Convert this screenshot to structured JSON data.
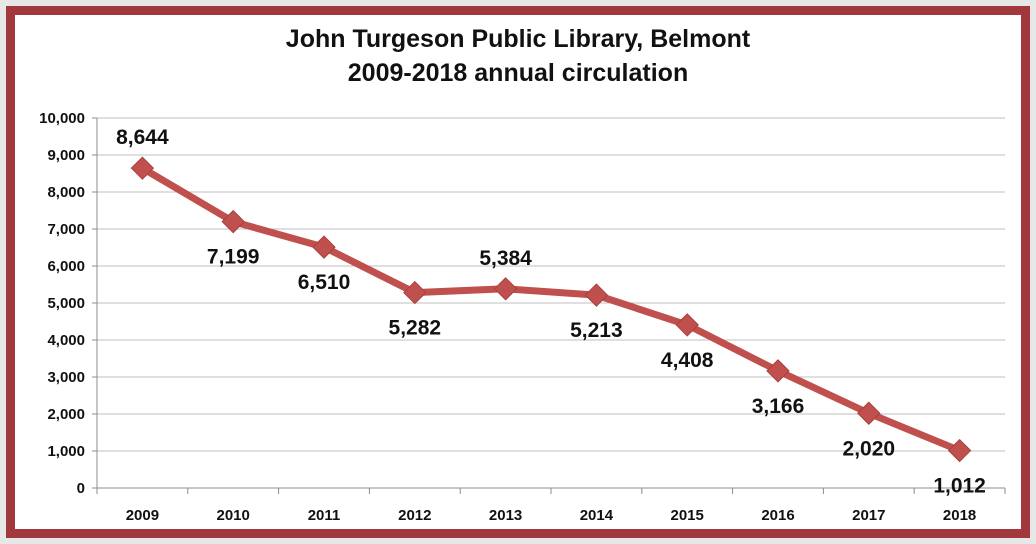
{
  "chart_data": {
    "type": "line",
    "title": "John Turgeson Public Library, Belmont",
    "subtitle": "2009-2018 annual circulation",
    "xlabel": "",
    "ylabel": "",
    "categories": [
      "2009",
      "2010",
      "2011",
      "2012",
      "2013",
      "2014",
      "2015",
      "2016",
      "2017",
      "2018"
    ],
    "series": [
      {
        "values": [
          8644,
          7199,
          6510,
          5282,
          5384,
          5213,
          4408,
          3166,
          2020,
          1012
        ],
        "data_labels": [
          "8,644",
          "7,199",
          "6,510",
          "5,282",
          "5,384",
          "5,213",
          "4,408",
          "3,166",
          "2,020",
          "1,012"
        ],
        "label_position": [
          "above",
          "below",
          "below",
          "below",
          "above",
          "below",
          "below",
          "below",
          "below",
          "below"
        ]
      }
    ],
    "ylim": [
      0,
      10000
    ],
    "y_ticks": [
      0,
      1000,
      2000,
      3000,
      4000,
      5000,
      6000,
      7000,
      8000,
      9000,
      10000
    ],
    "y_tick_labels": [
      "0",
      "1,000",
      "2,000",
      "3,000",
      "4,000",
      "5,000",
      "6,000",
      "7,000",
      "8,000",
      "9,000",
      "10,000"
    ],
    "grid": true,
    "legend": "none",
    "line_color": "#c0504d",
    "marker": "diamond",
    "frame_color": "#a0383c"
  }
}
